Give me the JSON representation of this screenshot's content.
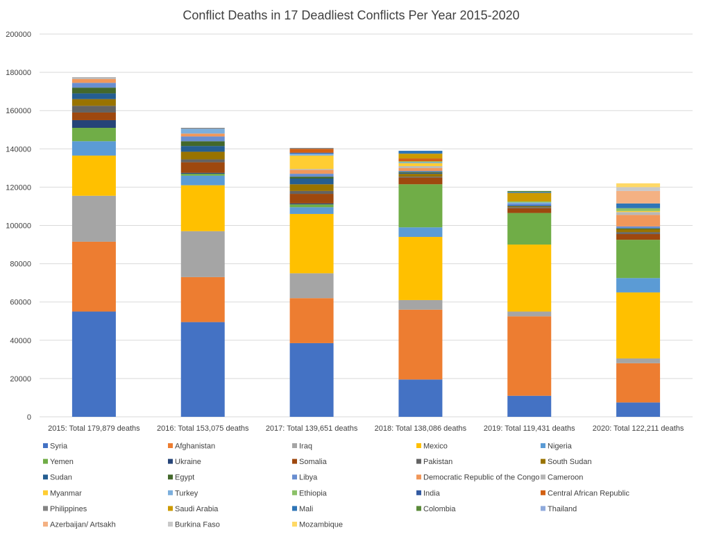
{
  "chart_data": {
    "type": "stacked-bar",
    "title": "Conflict Deaths in 17 Deadliest Conflicts Per Year 2015-2020",
    "xlabel": "",
    "ylabel": "",
    "ylim": [
      0,
      200000
    ],
    "yticks": [
      "0",
      "20000",
      "40000",
      "60000",
      "80000",
      "100000",
      "120000",
      "140000",
      "160000",
      "180000",
      "200000"
    ],
    "grid": true,
    "legend_position": "bottom",
    "categories": [
      "2015: Total 179,879 deaths",
      "2016: Total 153,075 deaths",
      "2017: Total 139,651 deaths",
      "2018: Total 138,086 deaths",
      "2019: Total 119,431 deaths",
      "2020: Total 122,211 deaths"
    ],
    "series": [
      {
        "name": "Syria",
        "color": "#4472c4",
        "values": [
          55000,
          49500,
          38500,
          19500,
          11000,
          7500
        ]
      },
      {
        "name": "Afghanistan",
        "color": "#ed7d31",
        "values": [
          36500,
          23500,
          23500,
          36500,
          41500,
          20500
        ]
      },
      {
        "name": "Iraq",
        "color": "#a5a5a5",
        "values": [
          24000,
          24000,
          13000,
          5000,
          2500,
          2500
        ]
      },
      {
        "name": "Mexico",
        "color": "#ffc000",
        "values": [
          21000,
          24000,
          31000,
          33000,
          35000,
          34500
        ]
      },
      {
        "name": "Nigeria",
        "color": "#5b9bd5",
        "values": [
          7500,
          5000,
          3500,
          5000,
          0,
          7500
        ]
      },
      {
        "name": "Yemen",
        "color": "#70ad47",
        "values": [
          7000,
          1000,
          1500,
          22500,
          16500,
          20000
        ]
      },
      {
        "name": "Ukraine",
        "color": "#264478",
        "values": [
          4000,
          500,
          500,
          0,
          0,
          0
        ]
      },
      {
        "name": "Somalia",
        "color": "#9e480e",
        "values": [
          4000,
          5500,
          5000,
          3500,
          2500,
          3000
        ]
      },
      {
        "name": "Pakistan",
        "color": "#636363",
        "values": [
          3500,
          1500,
          1500,
          500,
          500,
          1000
        ]
      },
      {
        "name": "South Sudan",
        "color": "#997300",
        "values": [
          3500,
          4000,
          3500,
          1500,
          500,
          1500
        ]
      },
      {
        "name": "Sudan",
        "color": "#255e91",
        "values": [
          3000,
          3000,
          3000,
          500,
          500,
          0
        ]
      },
      {
        "name": "Egypt",
        "color": "#43682b",
        "values": [
          3000,
          2500,
          1000,
          500,
          0,
          500
        ]
      },
      {
        "name": "Libya",
        "color": "#698ed0",
        "values": [
          2500,
          2500,
          1500,
          500,
          1000,
          1000
        ]
      },
      {
        "name": "Democratic Republic of the Congo",
        "color": "#f1975a",
        "values": [
          2000,
          1500,
          2000,
          1500,
          0,
          6000
        ]
      },
      {
        "name": "Cameroon",
        "color": "#b7b7b7",
        "values": [
          1000,
          0,
          500,
          1000,
          0,
          1500
        ]
      },
      {
        "name": "Myanmar",
        "color": "#ffcd33",
        "values": [
          0,
          0,
          7000,
          1500,
          0,
          500
        ]
      },
      {
        "name": "Turkey",
        "color": "#7cafdd",
        "values": [
          0,
          2500,
          1000,
          500,
          500,
          0
        ]
      },
      {
        "name": "Ethiopia",
        "color": "#8cc168",
        "values": [
          0,
          0,
          0,
          500,
          500,
          1500
        ]
      },
      {
        "name": "India",
        "color": "#335aa1",
        "values": [
          0,
          0,
          500,
          0,
          0,
          0
        ]
      },
      {
        "name": "Central African Republic",
        "color": "#d26012",
        "values": [
          0,
          0,
          2000,
          1500,
          0,
          0
        ]
      },
      {
        "name": "Philippines",
        "color": "#848484",
        "values": [
          0,
          500,
          500,
          0,
          0,
          0
        ]
      },
      {
        "name": "Saudi Arabia",
        "color": "#cc9a00",
        "values": [
          0,
          0,
          0,
          2500,
          4500,
          0
        ]
      },
      {
        "name": "Mali",
        "color": "#2e75b6",
        "values": [
          0,
          0,
          0,
          1500,
          500,
          2500
        ]
      },
      {
        "name": "Colombia",
        "color": "#5a8a39",
        "values": [
          0,
          0,
          0,
          0,
          500,
          0
        ]
      },
      {
        "name": "Thailand",
        "color": "#8faadc",
        "values": [
          0,
          0,
          0,
          0,
          0,
          0
        ]
      },
      {
        "name": "Azerbaijan/ Artsakh",
        "color": "#f4b183",
        "values": [
          0,
          0,
          0,
          0,
          0,
          6500
        ]
      },
      {
        "name": "Burkina Faso",
        "color": "#c9c9c9",
        "values": [
          0,
          0,
          0,
          0,
          0,
          2000
        ]
      },
      {
        "name": "Mozambique",
        "color": "#ffd966",
        "values": [
          0,
          0,
          0,
          0,
          0,
          2000
        ]
      }
    ]
  }
}
